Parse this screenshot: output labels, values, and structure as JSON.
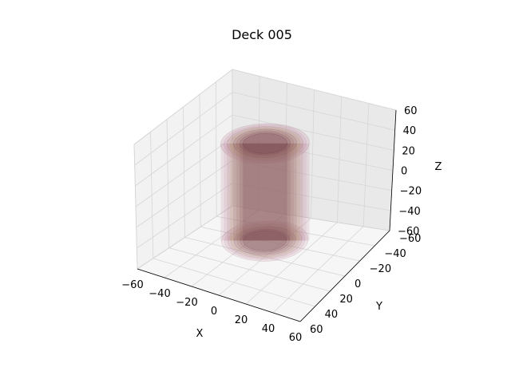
{
  "chart_data": {
    "type": "3d-surface",
    "title": "Deck 005",
    "xlabel": "X",
    "ylabel": "Y",
    "zlabel": "Z",
    "xlim": [
      -60,
      60
    ],
    "ylim": [
      -60,
      60
    ],
    "zlim": [
      -60,
      60
    ],
    "xticks": [
      "−60",
      "−40",
      "−20",
      "0",
      "20",
      "40",
      "60"
    ],
    "yticks": [
      "−60",
      "−40",
      "−20",
      "0",
      "20",
      "40",
      "60"
    ],
    "zticks": [
      "−60",
      "−40",
      "−20",
      "0",
      "20",
      "40",
      "60"
    ],
    "grid": true,
    "surfaces": [
      {
        "shape": "cylinder",
        "radius": 28,
        "z_range": [
          -45,
          45
        ],
        "color": "#b07a8a"
      },
      {
        "shape": "cylinder",
        "radius": 26,
        "z_range": [
          -45,
          45
        ],
        "color": "#c98ab0"
      },
      {
        "shape": "cylinder",
        "radius": 24,
        "z_range": [
          -45,
          45
        ],
        "color": "#a88070"
      },
      {
        "shape": "cylinder",
        "radius": 22,
        "z_range": [
          -45,
          45
        ],
        "color": "#b59a6a"
      },
      {
        "shape": "cylinder",
        "radius": 20,
        "z_range": [
          -45,
          45
        ],
        "color": "#8a5a6a"
      },
      {
        "shape": "cylinder",
        "radius": 18,
        "z_range": [
          -45,
          45
        ],
        "color": "#9a6a60"
      },
      {
        "shape": "cylinder",
        "radius": 16,
        "z_range": [
          -45,
          45
        ],
        "color": "#7a4a5a"
      },
      {
        "shape": "cylinder",
        "radius": 14,
        "z_range": [
          -45,
          45
        ],
        "color": "#6a3a4a"
      }
    ]
  }
}
